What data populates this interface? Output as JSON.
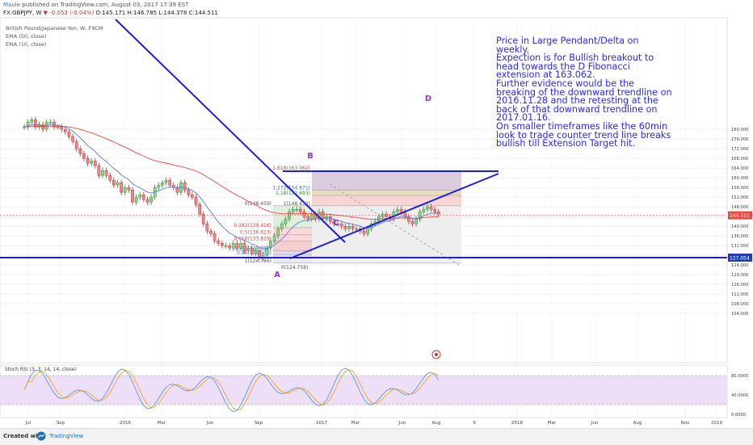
{
  "header": {
    "author": "Maule",
    "published": "published on TradingView.com, August 03, 2017 17:39 EST",
    "symbol": "FX:GBPJPY, W",
    "change": "-0.053 (-0.04%)",
    "ohlc": "O:145.171 H:146.785 L:144.378 C:144.511"
  },
  "legend": {
    "title": "British Pound/Japanese Yen, W, FXCM",
    "ema50": "EMA (50, close)",
    "ema10": "EMA (10, close)"
  },
  "note": {
    "lines": [
      "Price in Large Pendant/Delta on",
      "weekly.",
      "Expection is for Bullish breakout to",
      "head towards the D Fibonacci",
      "extension at 163.062.",
      "Further evidence would be the",
      "breaking of the downward trendline on",
      "2016.11.28 and the retesting at the",
      "back of that downward trendline on",
      "2017.01.16.",
      "On smaller timeframes like the 60min",
      "look to trade counter trend line breaks",
      "bullish till Extension Target hit."
    ]
  },
  "chart_data": [
    {
      "type": "candlestick",
      "title": "British Pound/Japanese Yen, W, FXCM",
      "ylim": [
        100,
        182
      ],
      "y_ticks": [
        "180.000",
        "176.000",
        "172.000",
        "168.000",
        "164.000",
        "160.000",
        "156.000",
        "152.000",
        "148.000",
        "144.000",
        "140.000",
        "136.000",
        "132.000",
        "128.000",
        "124.000",
        "120.000",
        "116.000",
        "112.000",
        "108.000",
        "104.000"
      ],
      "x_ticks": [
        "Jul",
        "Sep",
        "2016",
        "Mar",
        "Jun",
        "Sep",
        "2017",
        "Mar",
        "Jun",
        "Aug",
        "9",
        "2018",
        "Mar",
        "Jun",
        "Aug",
        "Nov",
        "2019"
      ],
      "last_price_label": "144.511",
      "support_label": "127.054",
      "last_price": 144.511,
      "support_level": 127.054,
      "series": [
        {
          "name": "EMA (50, close)",
          "color": "#e74c3c"
        },
        {
          "name": "EMA (10, close)",
          "color": "#5b7bd6"
        }
      ],
      "fib_retracement": [
        {
          "label": "0(148.459)",
          "value": 148.459
        },
        {
          "label": "0.382(139.416)",
          "value": 139.416
        },
        {
          "label": "0.5(136.623)",
          "value": 136.623
        },
        {
          "label": "0.618(133.829)",
          "value": 133.829
        },
        {
          "label": "0.786(129.852)",
          "value": 129.852
        },
        {
          "label": "0.86(128.100)",
          "value": 128.1
        },
        {
          "label": "1(124.786)",
          "value": 124.786
        }
      ],
      "fib_extension": [
        {
          "label": "1.618(163.062)",
          "value": 163.062
        },
        {
          "label": "1.272(154.871)",
          "value": 154.871
        },
        {
          "label": "1.18(152.693)",
          "value": 152.693
        },
        {
          "label": "1(148.433)",
          "value": 148.433
        },
        {
          "label": "0(124.758)",
          "value": 124.758
        }
      ],
      "annotations": [
        "A",
        "B",
        "C",
        "D"
      ]
    },
    {
      "type": "line",
      "title": "Stoch RSI (3, 3, 14, 14, close)",
      "ylim": [
        0,
        100
      ],
      "y_ticks": [
        "80.0000",
        "40.0000",
        "0.0000"
      ],
      "series": [
        {
          "name": "%K",
          "color": "#4a90d9"
        },
        {
          "name": "%D",
          "color": "#f39c12"
        }
      ]
    }
  ],
  "footer": {
    "created": "Created with",
    "brand": "TradingView"
  }
}
